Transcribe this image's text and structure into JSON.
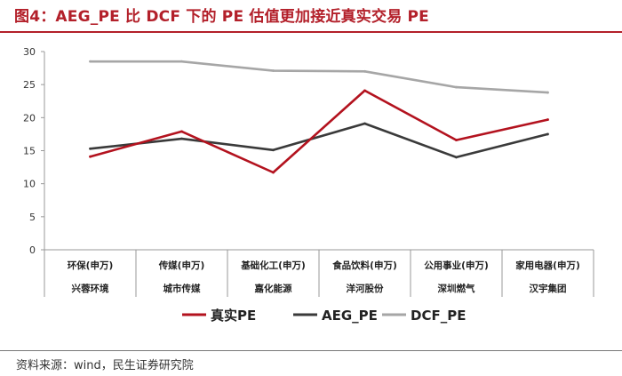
{
  "title": "图4：AEG_PE 比 DCF 下的 PE 估值更加接近真实交易 PE",
  "source": "资料来源：wind，民生证券研究院",
  "chart_data": {
    "type": "line",
    "categories": [
      {
        "industry": "环保(申万)",
        "company": "兴蓉环境"
      },
      {
        "industry": "传媒(申万)",
        "company": "城市传媒"
      },
      {
        "industry": "基础化工(申万)",
        "company": "嘉化能源"
      },
      {
        "industry": "食品饮料(申万)",
        "company": "洋河股份"
      },
      {
        "industry": "公用事业(申万)",
        "company": "深圳燃气"
      },
      {
        "industry": "家用电器(申万)",
        "company": "汉宇集团"
      }
    ],
    "series": [
      {
        "name": "真实PE",
        "color": "#b3121e",
        "values": [
          14.1,
          17.9,
          11.7,
          24.1,
          16.6,
          19.7
        ]
      },
      {
        "name": "AEG_PE",
        "color": "#3a3a3a",
        "values": [
          15.3,
          16.8,
          15.1,
          19.1,
          14.0,
          17.5
        ]
      },
      {
        "name": "DCF_PE",
        "color": "#a6a6a6",
        "values": [
          28.5,
          28.5,
          27.1,
          27.0,
          24.6,
          23.8
        ]
      }
    ],
    "ylim": [
      0,
      30
    ],
    "yticks": [
      0,
      5,
      10,
      15,
      20,
      25,
      30
    ],
    "grid": false,
    "legend": "bottom"
  }
}
